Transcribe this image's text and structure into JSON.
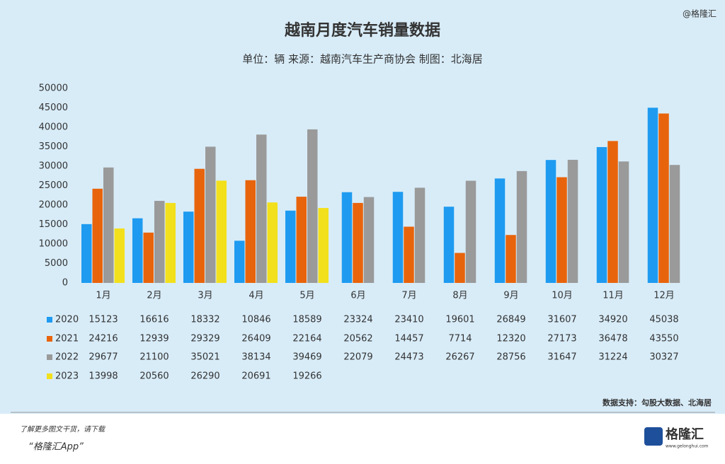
{
  "chart_data": {
    "type": "bar",
    "title": "越南月度汽车销量数据",
    "subtitle": "单位：辆 来源：越南汽车生产商协会 制图：北海居",
    "categories": [
      "1月",
      "2月",
      "3月",
      "4月",
      "5月",
      "6月",
      "7月",
      "8月",
      "9月",
      "10月",
      "11月",
      "12月"
    ],
    "series": [
      {
        "name": "2020",
        "color": "#1e9bf0",
        "values": [
          15123,
          16616,
          18332,
          10846,
          18589,
          23324,
          23410,
          19601,
          26849,
          31607,
          34920,
          45038
        ]
      },
      {
        "name": "2021",
        "color": "#e8640c",
        "values": [
          24216,
          12939,
          29329,
          26409,
          22164,
          20562,
          14457,
          7714,
          12320,
          27173,
          36478,
          43550
        ]
      },
      {
        "name": "2022",
        "color": "#9a9a9a",
        "values": [
          29677,
          21100,
          35021,
          38134,
          39469,
          22079,
          24473,
          26267,
          28756,
          31647,
          31224,
          30327
        ]
      },
      {
        "name": "2023",
        "color": "#f2e01c",
        "values": [
          13998,
          20560,
          26290,
          20691,
          19266,
          null,
          null,
          null,
          null,
          null,
          null,
          null
        ]
      }
    ],
    "ylim": [
      0,
      50000
    ],
    "yticks": [
      0,
      5000,
      10000,
      15000,
      20000,
      25000,
      30000,
      35000,
      40000,
      45000,
      50000
    ],
    "grid": false,
    "source": "数据支持：勾股大数据、北海居"
  },
  "page": {
    "watermark": "@格隆汇",
    "promo": "了解更多图文干货，请下载",
    "app": "“格隆汇App”",
    "logo": "格隆汇",
    "logo_url": "www.gelonghui.com"
  }
}
